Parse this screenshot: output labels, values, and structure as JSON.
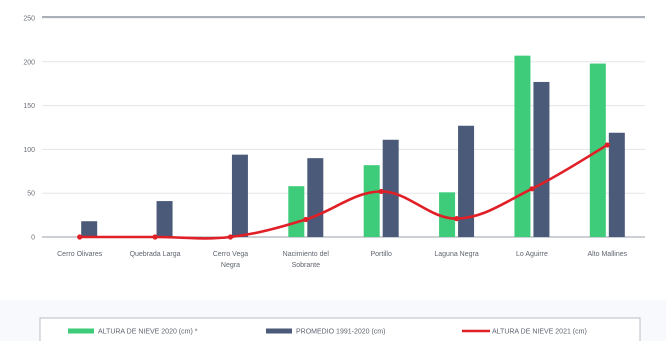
{
  "chart_data": {
    "type": "bar",
    "categories": [
      "Cerro Olivares",
      "Quebrada Larga",
      "Cerro Vega Negra",
      "Nacimiento del Sobrante",
      "Portillo",
      "Laguna Negra",
      "Lo Aguirre",
      "Alto Mallines"
    ],
    "category_lines": [
      [
        "Cerro Olivares"
      ],
      [
        "Quebrada Larga"
      ],
      [
        "Cerro Vega",
        "Negra"
      ],
      [
        "Nacimiento del",
        "Sobrante"
      ],
      [
        "Portillo"
      ],
      [
        "Laguna Negra"
      ],
      [
        "Lo Aguirre"
      ],
      [
        "Alto Mallines"
      ]
    ],
    "series": [
      {
        "name": "ALTURA DE NIEVE 2020 (cm) *",
        "type": "bar",
        "color": "#3ecb7a",
        "values": [
          0,
          0,
          0,
          58,
          82,
          51,
          207,
          198
        ]
      },
      {
        "name": "PROMEDIO 1991-2020 (cm)",
        "type": "bar",
        "color": "#4a5a78",
        "values": [
          18,
          41,
          94,
          90,
          111,
          127,
          177,
          119
        ]
      },
      {
        "name": "ALTURA DE NIEVE 2021 (cm)",
        "type": "line",
        "color": "#e01f26",
        "values": [
          0,
          0,
          0,
          20,
          52,
          21,
          55,
          105
        ]
      }
    ],
    "ylim": [
      0,
      250
    ],
    "yticks": [
      0,
      50,
      100,
      150,
      200,
      250
    ],
    "grid": true,
    "legend_position": "bottom",
    "title": "",
    "xlabel": "",
    "ylabel": ""
  }
}
